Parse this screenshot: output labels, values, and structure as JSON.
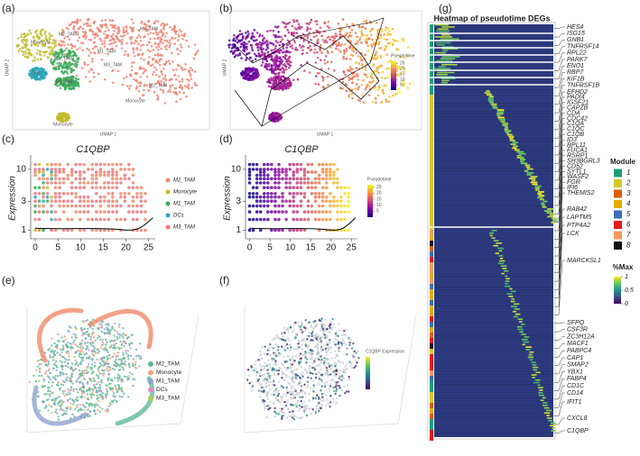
{
  "panels": [
    {
      "label": "(a)",
      "x_label": "UMAP 1",
      "y_label": "UMAP 2",
      "cluster_labels": [
        "M3_TAM",
        "Monocyte",
        "M2_TAM",
        "M1_TAM",
        "M3_TAM",
        "M1_TAM",
        "DCs",
        "M1_TAM",
        "M2_TAM",
        "Monocyte",
        "Monocyte"
      ]
    },
    {
      "label": "(b)",
      "x_label": "UMAP 1",
      "y_label": "UMAP 2",
      "legend_title": "Pseudotime",
      "legend_ticks": [
        25,
        20,
        15,
        10,
        5
      ],
      "legend_lim": [
        0,
        27
      ]
    },
    {
      "label": "(c)",
      "title": "C1QBP",
      "y_label": "Expression",
      "xlim": [
        -1,
        26.5
      ],
      "xticks": [
        0,
        5,
        10,
        15,
        20,
        25
      ],
      "ylim": [
        0.8,
        14
      ],
      "yticks": [
        1,
        3,
        10
      ],
      "log_y": true,
      "legend": [
        {
          "name": "M2_TAM",
          "color": "#f08a6c"
        },
        {
          "name": "Monocyte",
          "color": "#c2bd2b"
        },
        {
          "name": "M1_TAM",
          "color": "#3aaa5a"
        },
        {
          "name": "DCs",
          "color": "#2aa8b8"
        },
        {
          "name": "M3_TAM",
          "color": "#e8777f"
        }
      ]
    },
    {
      "label": "(d)",
      "title": "C1QBP",
      "y_label": "Expression",
      "xlim": [
        -1,
        26.5
      ],
      "xticks": [
        0,
        5,
        10,
        15,
        20,
        25
      ],
      "ylim": [
        0.8,
        14
      ],
      "yticks": [
        1,
        3,
        10
      ],
      "log_y": true,
      "legend_title": "Pseudotime",
      "legend_ticks": [
        25,
        20,
        15,
        10,
        5
      ],
      "legend_lim": [
        0,
        27
      ]
    },
    {
      "label": "(e)",
      "legend": [
        {
          "name": "M2_TAM",
          "color": "#5fb89a"
        },
        {
          "name": "Monocyte",
          "color": "#f2a07e"
        },
        {
          "name": "M1_TAM",
          "color": "#8fa3d0"
        },
        {
          "name": "DCs",
          "color": "#e08bc0"
        },
        {
          "name": "M3_TAM",
          "color": "#a6cf5a"
        }
      ]
    },
    {
      "label": "(f)",
      "legend_title": "C1QBP Expression"
    },
    {
      "label": "(g)",
      "title": "Heatmap of pseudotime DEGs",
      "genes": [
        "HES4",
        "ISG15",
        "GNB1",
        "TNFRSF14",
        "RPL22",
        "PARK7",
        "ENO1",
        "RBP7",
        "KIF1B",
        "TNFRSF1B",
        "EFHD2",
        "PADI4",
        "IGSF21",
        "CAPZB",
        "CDA",
        "CDC42",
        "C1QA",
        "C1QC",
        "C1QB",
        "ID3",
        "RPL11",
        "FUCA1",
        "RSRP1",
        "SH3BGRL3",
        "CD52",
        "SYTL1",
        "WASF2",
        "FGR",
        "IFI6",
        "THEMIS2",
        "RAB42",
        "LAPTM5",
        "PTP4A2",
        "LCK",
        "MARCKSL1",
        "SFPQ",
        "CSF3R",
        "ZC3H12A",
        "MACF1",
        "PABPC4",
        "CAP1",
        "SMAP2",
        "YBX1",
        "FABP4",
        "CD1C",
        "CD14",
        "IFIT1",
        "CXCL8",
        "C1QBP"
      ],
      "module_title": "Module",
      "modules": [
        {
          "name": 1,
          "color": "#1b9e77"
        },
        {
          "name": 2,
          "color": "#d4c72a"
        },
        {
          "name": 3,
          "color": "#d95f02"
        },
        {
          "name": 4,
          "color": "#e6ab02"
        },
        {
          "name": 5,
          "color": "#3b6fb6"
        },
        {
          "name": 6,
          "color": "#e31a1c"
        },
        {
          "name": 7,
          "color": "#f59a5b"
        },
        {
          "name": 8,
          "color": "#111111"
        }
      ],
      "scale_title": "%Max",
      "scale_lim": [
        0,
        1
      ],
      "scale_ticks": [
        1,
        0.5,
        0
      ]
    }
  ]
}
